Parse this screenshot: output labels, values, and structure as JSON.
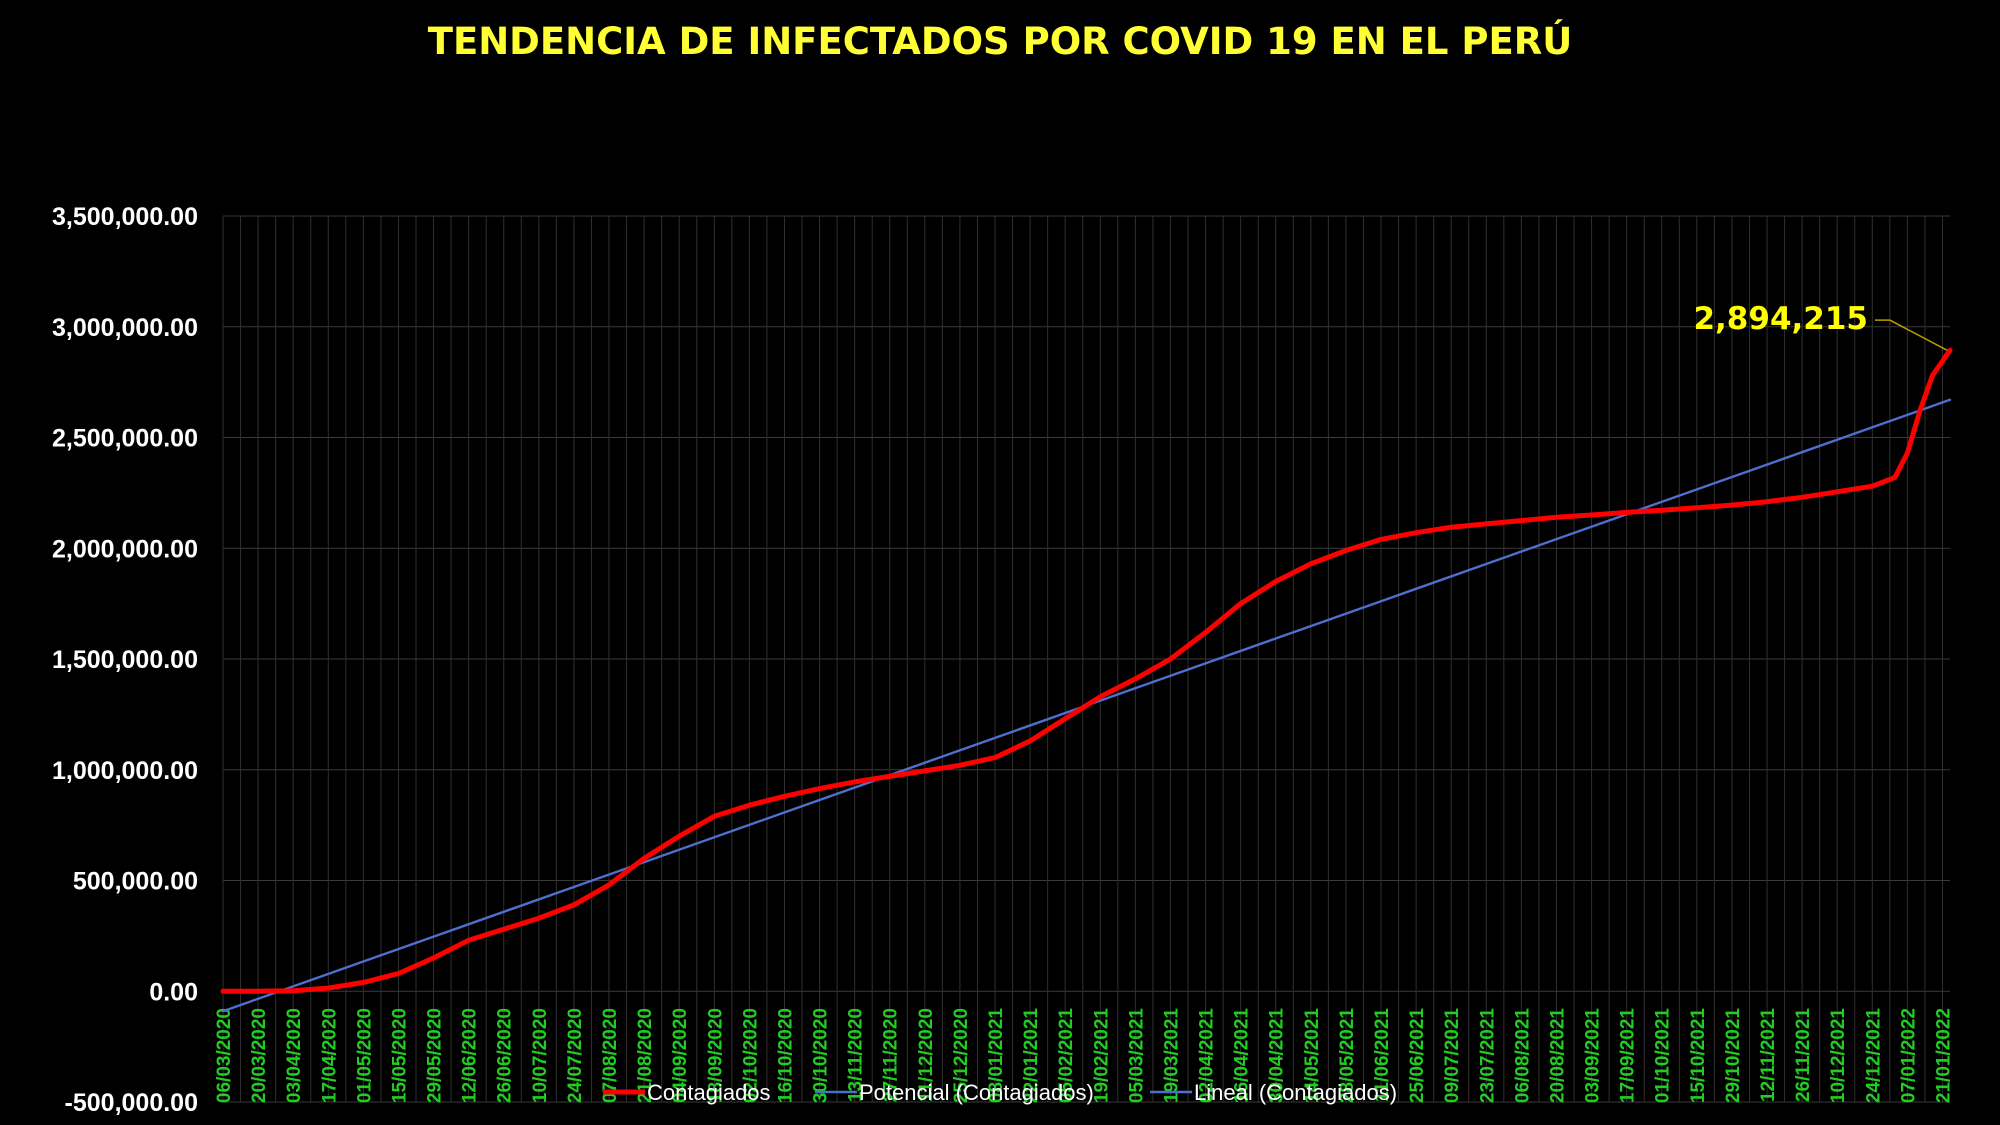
{
  "chart_data": {
    "type": "line",
    "title": "TENDENCIA DE INFECTADOS POR COVID 19 EN EL PERÚ",
    "ylim": [
      -500000,
      3500000
    ],
    "y_ticks": [
      "3,500,000.00",
      "3,000,000.00",
      "2,500,000.00",
      "2,000,000.00",
      "1,500,000.00",
      "1,000,000.00",
      "500,000.00",
      "0.00",
      "-500,000.00"
    ],
    "y_tick_values": [
      3500000,
      3000000,
      2500000,
      2000000,
      1500000,
      1000000,
      500000,
      0,
      -500000
    ],
    "x_start": "2020-03-06",
    "x_end": "2022-01-24",
    "x_tick_labels": [
      "06/03/2020",
      "20/03/2020",
      "03/04/2020",
      "17/04/2020",
      "01/05/2020",
      "15/05/2020",
      "29/05/2020",
      "12/06/2020",
      "26/06/2020",
      "10/07/2020",
      "24/07/2020",
      "07/08/2020",
      "21/08/2020",
      "04/09/2020",
      "18/09/2020",
      "02/10/2020",
      "16/10/2020",
      "30/10/2020",
      "13/11/2020",
      "27/11/2020",
      "11/12/2020",
      "25/12/2020",
      "08/01/2021",
      "22/01/2021",
      "05/02/2021",
      "19/02/2021",
      "05/03/2021",
      "19/03/2021",
      "02/04/2021",
      "16/04/2021",
      "30/04/2021",
      "14/05/2021",
      "28/05/2021",
      "11/06/2021",
      "25/06/2021",
      "09/07/2021",
      "23/07/2021",
      "06/08/2021",
      "20/08/2021",
      "03/09/2021",
      "17/09/2021",
      "01/10/2021",
      "15/10/2021",
      "29/10/2021",
      "12/11/2021",
      "26/11/2021",
      "10/12/2021",
      "24/12/2021",
      "07/01/2022",
      "21/01/2022"
    ],
    "grid": true,
    "legend_position": "bottom",
    "series": [
      {
        "name": "Contagiados",
        "color": "#ff0000",
        "x": [
          "2020-03-06",
          "2020-03-20",
          "2020-04-03",
          "2020-04-17",
          "2020-05-01",
          "2020-05-15",
          "2020-05-29",
          "2020-06-12",
          "2020-06-26",
          "2020-07-10",
          "2020-07-24",
          "2020-08-07",
          "2020-08-21",
          "2020-09-04",
          "2020-09-18",
          "2020-10-02",
          "2020-10-16",
          "2020-10-30",
          "2020-11-13",
          "2020-11-27",
          "2020-12-11",
          "2020-12-25",
          "2021-01-08",
          "2021-01-22",
          "2021-02-05",
          "2021-02-19",
          "2021-03-05",
          "2021-03-19",
          "2021-04-02",
          "2021-04-16",
          "2021-04-30",
          "2021-05-14",
          "2021-05-28",
          "2021-06-11",
          "2021-06-25",
          "2021-07-09",
          "2021-07-23",
          "2021-08-06",
          "2021-08-20",
          "2021-09-03",
          "2021-09-17",
          "2021-10-01",
          "2021-10-15",
          "2021-10-29",
          "2021-11-12",
          "2021-11-26",
          "2021-12-10",
          "2021-12-24",
          "2022-01-02",
          "2022-01-07",
          "2022-01-12",
          "2022-01-17",
          "2022-01-24"
        ],
        "y": [
          1,
          300,
          2000,
          14000,
          40000,
          80000,
          150000,
          230000,
          280000,
          330000,
          390000,
          480000,
          600000,
          700000,
          790000,
          840000,
          880000,
          915000,
          945000,
          970000,
          995000,
          1020000,
          1055000,
          1130000,
          1230000,
          1330000,
          1410000,
          1500000,
          1620000,
          1750000,
          1850000,
          1930000,
          1990000,
          2040000,
          2070000,
          2095000,
          2110000,
          2125000,
          2140000,
          2150000,
          2162000,
          2172000,
          2183000,
          2195000,
          2210000,
          2230000,
          2255000,
          2280000,
          2320000,
          2430000,
          2620000,
          2780000,
          2894215
        ]
      },
      {
        "name": "Potencial (Contagiados)",
        "color": "#4472c4",
        "x": [],
        "y": []
      },
      {
        "name": "Lineal (Contagiados)",
        "color": "#4f6fcf",
        "x": [
          "2020-03-06",
          "2022-01-24"
        ],
        "y": [
          -90000,
          2670000
        ]
      }
    ],
    "annotations": [
      {
        "text": "2,894,215",
        "x": "2022-01-24",
        "y": 2894215,
        "color": "#ffff00"
      }
    ]
  }
}
